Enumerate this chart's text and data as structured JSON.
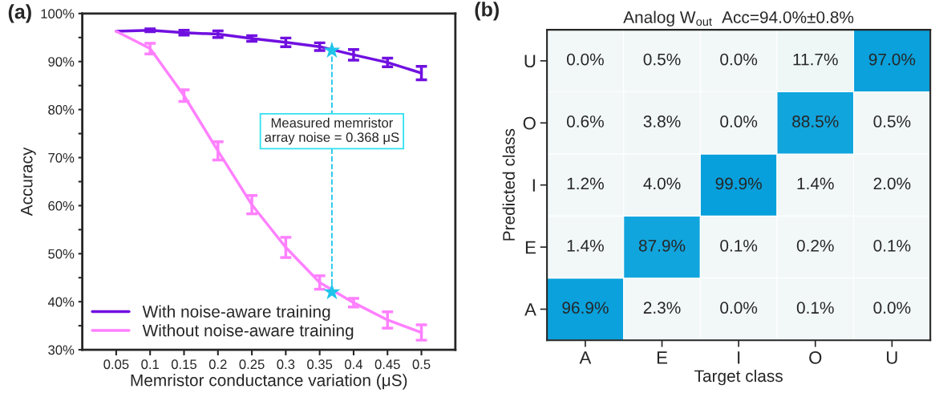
{
  "chart_data": [
    {
      "type": "line",
      "xlabel": "Memristor conductance variation (μS)",
      "ylabel": "Accuracy",
      "annotations": [
        "(a)",
        {
          "text": "Measured memristor\narray noise = 0.368 μS",
          "x": 0.368,
          "y": 75.5
        }
      ],
      "x": [
        0.05,
        0.1,
        0.15,
        0.2,
        0.25,
        0.3,
        0.35,
        0.4,
        0.45,
        0.5
      ],
      "series": [
        {
          "name": "With noise-aware training",
          "color": "#7010e0",
          "values": [
            96.3,
            96.5,
            96.0,
            95.7,
            94.8,
            94.0,
            93.1,
            91.4,
            89.8,
            87.6
          ],
          "errors": [
            null,
            0.3,
            0.5,
            0.7,
            0.6,
            0.9,
            0.8,
            1.1,
            0.9,
            1.4
          ]
        },
        {
          "name": "Without noise-aware training",
          "color": "#ff80ff",
          "values": [
            96.3,
            92.7,
            82.9,
            71.4,
            60.2,
            51.3,
            44.0,
            39.8,
            36.2,
            33.6
          ],
          "errors": [
            null,
            1.1,
            1.2,
            1.9,
            1.9,
            2.1,
            1.4,
            0.9,
            1.7,
            1.6
          ]
        },
        {
          "type": "line",
          "color": "#1ec4ea",
          "line_style": "dashed",
          "marker": "star",
          "x": [
            0.368,
            0.368
          ],
          "values": [
            42.0,
            92.3
          ]
        }
      ],
      "xlim": [
        0,
        0.55
      ],
      "xticks": [
        0.05,
        0.1,
        0.15,
        0.2,
        0.25,
        0.3,
        0.35,
        0.4,
        0.45,
        0.5
      ],
      "ylim": [
        30,
        100
      ],
      "yticks": [
        {
          "value": 30,
          "label": "30%"
        },
        {
          "value": 35,
          "label": null
        },
        {
          "value": 40,
          "label": "40%"
        },
        {
          "value": 45,
          "label": null
        },
        {
          "value": 50,
          "label": "50%"
        },
        {
          "value": 55,
          "label": null
        },
        {
          "value": 60,
          "label": "60%"
        },
        {
          "value": 65,
          "label": null
        },
        {
          "value": 70,
          "label": "70%"
        },
        {
          "value": 75,
          "label": null
        },
        {
          "value": 80,
          "label": "80%"
        },
        {
          "value": 85,
          "label": null
        },
        {
          "value": 90,
          "label": "90%"
        },
        {
          "value": 95,
          "label": null
        },
        {
          "value": 100,
          "label": "100%"
        }
      ],
      "legend": "bottom left",
      "grid": false
    },
    {
      "type": "heatmap",
      "title": "Analog W$_{out}$  Acc=94.0%±0.8%",
      "xlabel": "Target class",
      "ylabel": "Predicted class",
      "annotations": [
        "(b)"
      ],
      "categories": [
        "A",
        "E",
        "I",
        "O",
        "U"
      ],
      "y_categories": [
        "U",
        "O",
        "I",
        "E",
        "A"
      ],
      "cells": [
        [
          0.0,
          0.5,
          0.0,
          11.7,
          97.0
        ],
        [
          0.6,
          3.8,
          0.0,
          88.5,
          0.5
        ],
        [
          1.2,
          4.0,
          99.9,
          1.4,
          2.0
        ],
        [
          1.4,
          87.9,
          0.1,
          0.2,
          0.1
        ],
        [
          96.9,
          2.3,
          0.0,
          0.1,
          0.0
        ]
      ],
      "cell_labels": [
        [
          "0.0%",
          "0.5%",
          "0.0%",
          "11.7%",
          "97.0%"
        ],
        [
          "0.6%",
          "3.8%",
          "0.0%",
          "88.5%",
          "0.5%"
        ],
        [
          "1.2%",
          "4.0%",
          "99.9%",
          "1.4%",
          "2.0%"
        ],
        [
          "1.4%",
          "87.9%",
          "0.1%",
          "0.2%",
          "0.1%"
        ],
        [
          "96.9%",
          "2.3%",
          "0.0%",
          "0.1%",
          "0.0%"
        ]
      ]
    }
  ]
}
